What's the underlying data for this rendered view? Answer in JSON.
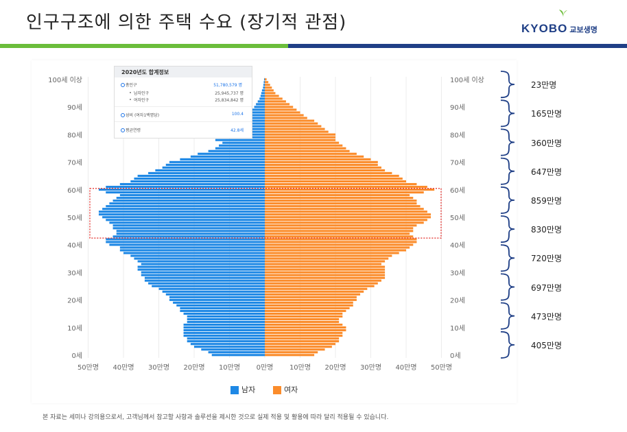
{
  "slide": {
    "title": "인구구조에 의한 주택 수요 (장기적 관점)",
    "footnote": "본 자료는 세미나 강의용으로서, 고객님께서 참고할 사항과 솔루션을 제시한 것으로 실제 적용 및 활용에 따라 달리 적용될 수 있습니다.",
    "brand_green": "#6bbd3a",
    "brand_blue": "#1f3f86"
  },
  "logo": {
    "text": "KYOBO",
    "sub": "교보생명",
    "icon": "leaf-icon"
  },
  "infobox": {
    "title": "2020년도 합계정보",
    "total_label": "총인구",
    "total_value": "51,780,579 명",
    "male_label": "남자인구",
    "male_value": "25,945,737 명",
    "female_label": "여자인구",
    "female_value": "25,834,842 명",
    "ratio_label": "성비 (여자1백명당)",
    "ratio_value": "100.4",
    "age_label": "평균연령",
    "age_value": "42.8세"
  },
  "legend": {
    "male": "남자",
    "female": "여자",
    "male_color": "#1e88e5",
    "female_color": "#fb8c2b"
  },
  "brace_labels": [
    "23만명",
    "165만명",
    "360만명",
    "647만명",
    "859만명",
    "830만명",
    "720만명",
    "697만명",
    "473만명",
    "405만명"
  ],
  "chart_data": {
    "type": "bar",
    "orientation": "horizontal",
    "title": "",
    "y_tick_labels": [
      "0세",
      "10세",
      "20세",
      "30세",
      "40세",
      "50세",
      "60세",
      "70세",
      "80세",
      "90세",
      "100세 이상"
    ],
    "x_tick_labels": [
      "50만명",
      "40만명",
      "30만명",
      "20만명",
      "10만명",
      "0만명",
      "10만명",
      "20만명",
      "30만명",
      "40만명",
      "50만명"
    ],
    "xlim": [
      -50,
      50
    ],
    "x_unit": "만명",
    "highlight_ages": [
      43,
      60
    ],
    "ages": [
      0,
      1,
      2,
      3,
      4,
      5,
      6,
      7,
      8,
      9,
      10,
      11,
      12,
      13,
      14,
      15,
      16,
      17,
      18,
      19,
      20,
      21,
      22,
      23,
      24,
      25,
      26,
      27,
      28,
      29,
      30,
      31,
      32,
      33,
      34,
      35,
      36,
      37,
      38,
      39,
      40,
      41,
      42,
      43,
      44,
      45,
      46,
      47,
      48,
      49,
      50,
      51,
      52,
      53,
      54,
      55,
      56,
      57,
      58,
      59,
      60,
      61,
      62,
      63,
      64,
      65,
      66,
      67,
      68,
      69,
      70,
      71,
      72,
      73,
      74,
      75,
      76,
      77,
      78,
      79,
      80,
      81,
      82,
      83,
      84,
      85,
      86,
      87,
      88,
      89,
      90,
      91,
      92,
      93,
      94,
      95,
      96,
      97,
      98,
      99,
      100
    ],
    "series": [
      {
        "name": "남자",
        "color": "#1e88e5",
        "values": [
          15,
          16,
          18,
          20,
          21,
          22,
          22,
          23,
          23,
          23,
          23,
          23,
          22,
          22,
          22,
          23,
          24,
          24,
          25,
          26,
          27,
          27,
          28,
          29,
          30,
          32,
          33,
          34,
          34,
          35,
          35,
          36,
          36,
          35,
          36,
          37,
          38,
          40,
          41,
          41,
          44,
          45,
          45,
          43,
          42,
          42,
          43,
          43,
          44,
          45,
          46,
          47,
          47,
          46,
          45,
          44,
          43,
          42,
          41,
          45,
          47,
          45,
          41,
          38,
          37,
          36,
          33,
          31,
          29,
          28,
          27,
          24,
          21,
          19,
          16,
          14,
          13,
          12,
          14,
          15,
          14,
          14,
          12,
          11,
          9,
          8,
          6,
          5,
          4,
          3.5,
          3,
          2.5,
          2,
          1.5,
          1.2,
          1,
          0.8,
          0.5,
          0.4,
          0.3,
          0.2
        ]
      },
      {
        "name": "여자",
        "color": "#fb8c2b",
        "values": [
          14,
          15,
          17,
          19,
          20,
          21,
          21,
          22,
          22,
          23,
          23,
          22,
          21,
          21,
          22,
          22,
          23,
          24,
          25,
          25,
          26,
          26,
          27,
          28,
          29,
          31,
          32,
          33,
          34,
          34,
          34,
          34,
          34,
          33,
          34,
          35,
          36,
          38,
          40,
          41,
          42,
          43,
          43,
          42,
          41,
          42,
          42,
          43,
          45,
          46,
          47,
          47,
          46,
          45,
          44,
          43,
          43,
          42,
          41,
          45,
          48,
          46,
          43,
          40,
          39,
          38,
          36,
          34,
          33,
          32,
          32,
          30,
          28,
          26,
          24,
          23,
          22,
          21,
          20,
          20,
          20,
          18,
          17,
          16,
          15,
          14,
          12,
          11,
          10,
          9,
          8,
          7,
          6,
          5,
          4,
          3,
          2.5,
          2,
          1.5,
          1,
          0.5
        ]
      }
    ]
  }
}
